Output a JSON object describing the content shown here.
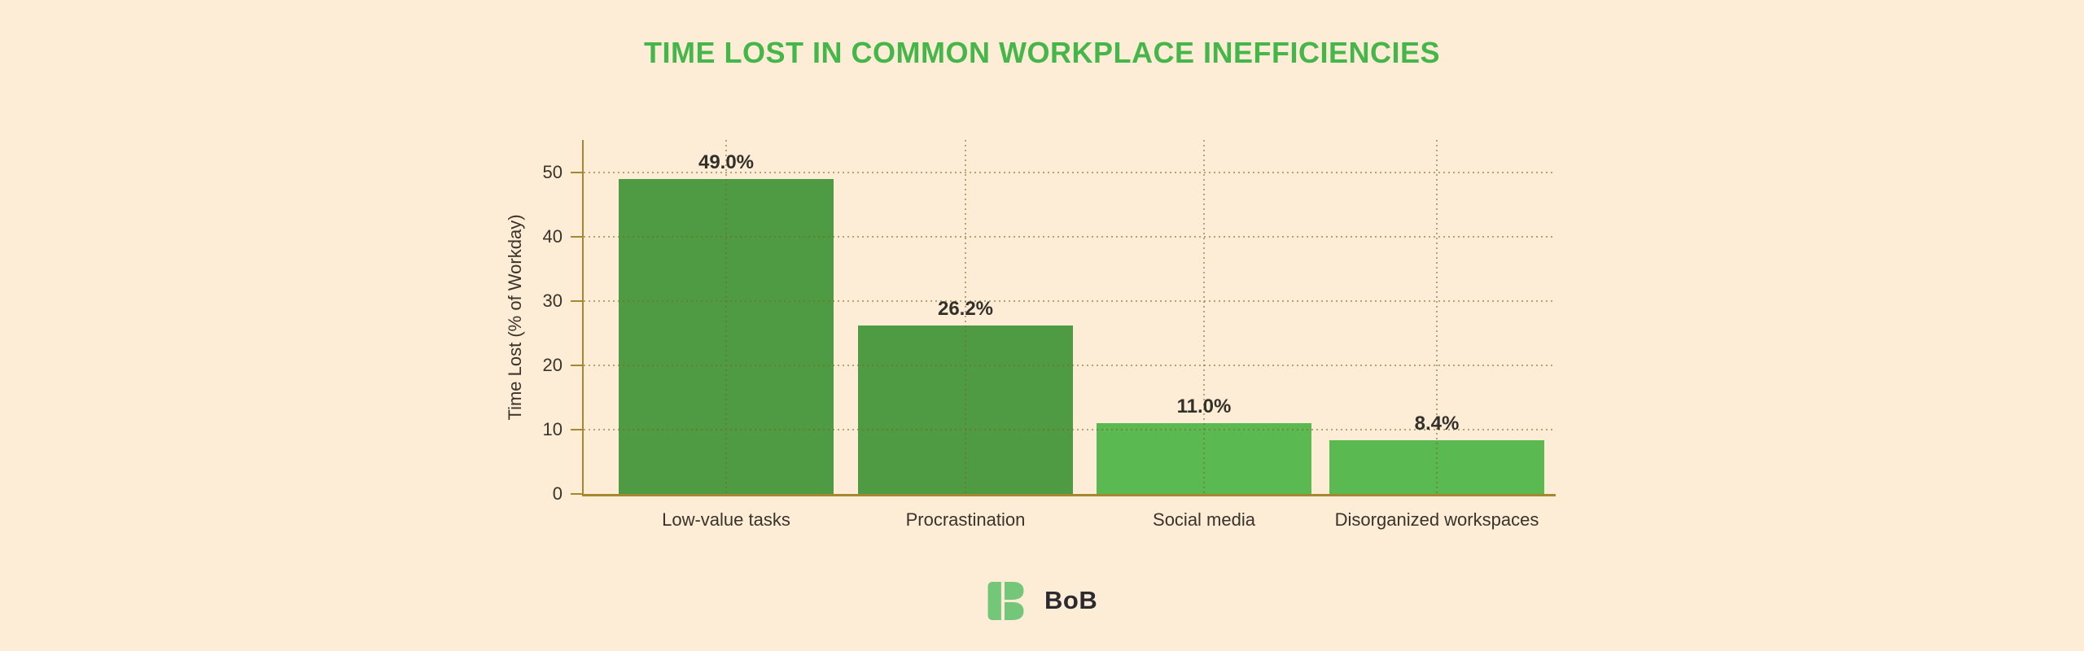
{
  "title": {
    "text": "TIME LOST IN COMMON WORKPLACE INEFFICIENCIES"
  },
  "chart_data": {
    "type": "bar",
    "title": "TIME LOST IN COMMON WORKPLACE INEFFICIENCIES",
    "categories": [
      "Low-value tasks",
      "Procrastination",
      "Social media",
      "Disorganized workspaces"
    ],
    "values": [
      49.0,
      26.2,
      11.0,
      8.4
    ],
    "value_labels": [
      "49.0%",
      "26.2%",
      "11.0%",
      "8.4%"
    ],
    "xlabel": "",
    "ylabel": "Time Lost (% of Workday)",
    "ylim": [
      0,
      55
    ],
    "yticks": [
      0,
      10,
      20,
      30,
      40,
      50
    ],
    "grid": {
      "horizontal": "dotted",
      "vertical": "dotted-at-bar-centers"
    },
    "legend_position": "none",
    "bar_colors": [
      "#4f9b43",
      "#4f9b43",
      "#5bb952",
      "#5bb952"
    ]
  },
  "footer": {
    "brand": "BoB"
  },
  "colors": {
    "background": "#fdecd6",
    "title": "#45b649",
    "axis": "#a8882e",
    "gridline": "rgba(128,102,38,0.55)",
    "chart_text": "#3a3329",
    "value_label": "#33302a",
    "brand_text": "#2b2a2f",
    "logo_green": "#74c678"
  }
}
